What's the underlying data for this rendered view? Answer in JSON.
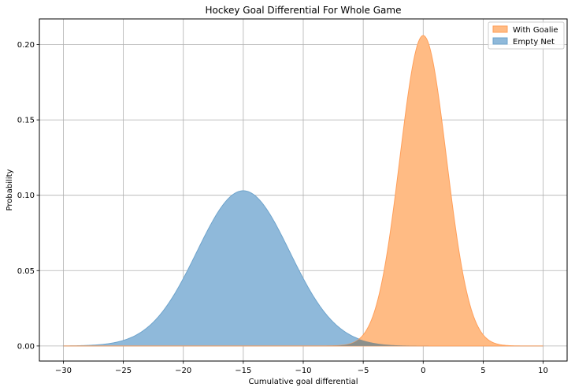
{
  "chart_data": {
    "type": "area",
    "title": "Hockey Goal Differential For Whole Game",
    "xlabel": "Cumulative goal differential",
    "ylabel": "Probability",
    "xlim": [
      -32,
      12
    ],
    "ylim": [
      -0.01,
      0.217
    ],
    "xticks": [
      -30,
      -25,
      -20,
      -15,
      -10,
      -5,
      0,
      5,
      10
    ],
    "xtick_labels": [
      "−30",
      "−25",
      "−20",
      "−15",
      "−10",
      "−5",
      "0",
      "5",
      "10"
    ],
    "yticks": [
      0.0,
      0.05,
      0.1,
      0.15,
      0.2
    ],
    "ytick_labels": [
      "0.00",
      "0.05",
      "0.10",
      "0.15",
      "0.20"
    ],
    "grid": true,
    "legend_position": "top-right",
    "x_range": [
      -30,
      10
    ],
    "series": [
      {
        "name": "With Goalie",
        "color": "#ffbb84",
        "edge_color": "#ff9f5a",
        "distribution": "normal",
        "mean": 0,
        "peak": 0.206
      },
      {
        "name": "Empty Net",
        "color": "#8fb9da",
        "edge_color": "#6fa4cc",
        "distribution": "normal",
        "mean": -15,
        "peak": 0.103
      }
    ]
  }
}
